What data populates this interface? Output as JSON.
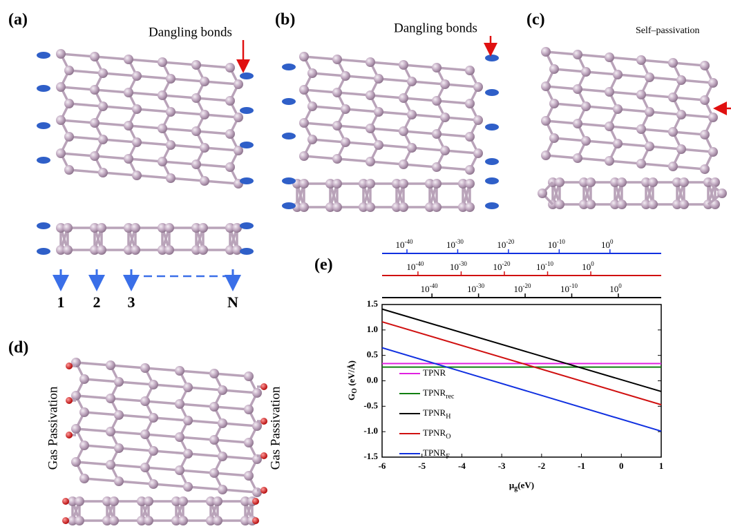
{
  "panels": {
    "a": {
      "label": "(a)",
      "note": "Dangling bonds",
      "chain_labels": [
        "1",
        "2",
        "3",
        "N"
      ]
    },
    "b": {
      "label": "(b)",
      "note": "Dangling bonds"
    },
    "c": {
      "label": "(c)",
      "note": "Self–passivation"
    },
    "d": {
      "label": "(d)",
      "left_note": "Gas Passivation",
      "right_note": "Gas Passivation"
    }
  },
  "chart_data": {
    "type": "line",
    "panel_label": "(e)",
    "xlabel": {
      "main": "μ",
      "sub": "g",
      "rest": "(eV)"
    },
    "ylabel": {
      "main": "G",
      "sub": "O",
      "rest": " (eV/Å)"
    },
    "x": [
      -6,
      1
    ],
    "series": [
      {
        "name": "TPNR",
        "color": "#e020e0",
        "values": [
          0.34,
          0.34
        ]
      },
      {
        "name": "TPNR",
        "subscript": "rec",
        "color": "#108010",
        "values": [
          0.27,
          0.27
        ]
      },
      {
        "name": "TPNR",
        "subscript": "H",
        "color": "#000000",
        "values": [
          1.41,
          -0.21
        ]
      },
      {
        "name": "TPNR",
        "subscript": "O",
        "color": "#d01010",
        "values": [
          1.16,
          -0.47
        ]
      },
      {
        "name": "TPNR",
        "subscript": "F",
        "color": "#1030e0",
        "values": [
          0.65,
          -0.99
        ]
      }
    ],
    "xlim": [
      -6,
      1
    ],
    "xticks": [
      -6,
      -5,
      -4,
      -3,
      -2,
      -1,
      0,
      1
    ],
    "ylim": [
      -1.5,
      1.5
    ],
    "yticks": [
      -1.5,
      {
        "value": -1,
        "label": "-1.0"
      },
      -0.5,
      {
        "value": 0,
        "label": "0.0"
      },
      0.5,
      {
        "value": 1,
        "label": "1.0"
      },
      1.5
    ],
    "pressure_axes": [
      {
        "color": "#1030e0",
        "xlim": [
          -44.9,
          10.1
        ],
        "xticks": [
          {
            "value": -40,
            "label": "10",
            "exponent": "-40"
          },
          {
            "value": -30,
            "label": "10",
            "exponent": "-30"
          },
          {
            "value": -20,
            "label": "10",
            "exponent": "-20"
          },
          {
            "value": -10,
            "label": "10",
            "exponent": "-10"
          },
          {
            "value": 0,
            "label": "10",
            "exponent": "0"
          }
        ]
      },
      {
        "color": "#d01010",
        "xlim": [
          -48.3,
          16.3
        ],
        "xticks": [
          {
            "value": -40,
            "label": "10",
            "exponent": "-40"
          },
          {
            "value": -30,
            "label": "10",
            "exponent": "-30"
          },
          {
            "value": -20,
            "label": "10",
            "exponent": "-20"
          },
          {
            "value": -10,
            "label": "10",
            "exponent": "-10"
          },
          {
            "value": 0,
            "label": "10",
            "exponent": "0"
          }
        ]
      },
      {
        "color": "#000000",
        "xlim": [
          -50.7,
          9.2
        ],
        "xticks": [
          {
            "value": -40,
            "label": "10",
            "exponent": "-40"
          },
          {
            "value": -30,
            "label": "10",
            "exponent": "-30"
          },
          {
            "value": -20,
            "label": "10",
            "exponent": "-20"
          },
          {
            "value": -10,
            "label": "10",
            "exponent": "-10"
          },
          {
            "value": 0,
            "label": "10",
            "exponent": "0"
          }
        ]
      }
    ]
  }
}
